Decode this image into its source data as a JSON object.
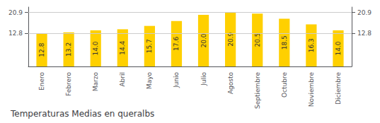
{
  "chart_data": {
    "type": "bar",
    "title": "Temperaturas Medias en queralbs",
    "categories": [
      "Enero",
      "Febrero",
      "Marzo",
      "Abril",
      "Mayo",
      "Junio",
      "Julio",
      "Agosto",
      "Septiembre",
      "Octubre",
      "Noviembre",
      "Diciembre"
    ],
    "values": [
      12.8,
      13.2,
      14.0,
      14.4,
      15.7,
      17.6,
      20.0,
      20.9,
      20.5,
      18.5,
      16.3,
      14.0
    ],
    "value_labels": [
      "12.8",
      "13.2",
      "14.0",
      "14.4",
      "15.7",
      "17.6",
      "20.0",
      "20.9",
      "20.5",
      "18.5",
      "16.3",
      "14.0"
    ],
    "data_labels": true,
    "color": "#FFD000",
    "ylim": [
      0,
      23.0
    ],
    "yticks": [
      12.8,
      20.9
    ],
    "y2lim": [
      0,
      23.0
    ],
    "y2ticks": [
      12.8,
      20.9
    ],
    "grid": true
  }
}
